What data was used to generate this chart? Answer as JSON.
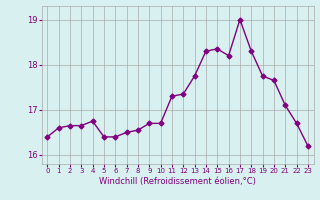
{
  "x": [
    0,
    1,
    2,
    3,
    4,
    5,
    6,
    7,
    8,
    9,
    10,
    11,
    12,
    13,
    14,
    15,
    16,
    17,
    18,
    19,
    20,
    21,
    22,
    23
  ],
  "y": [
    16.4,
    16.6,
    16.65,
    16.65,
    16.75,
    16.4,
    16.4,
    16.5,
    16.55,
    16.7,
    16.7,
    17.3,
    17.35,
    17.75,
    18.3,
    18.35,
    18.2,
    19.0,
    18.3,
    17.75,
    17.65,
    17.1,
    16.7,
    16.2
  ],
  "line_color": "#800080",
  "marker": "D",
  "marker_size": 2.5,
  "bg_color": "#d8f0f0",
  "grid_color": "#aaaaaa",
  "xlabel": "Windchill (Refroidissement éolien,°C)",
  "xlabel_color": "#800080",
  "tick_color": "#800080",
  "ylim": [
    15.8,
    19.3
  ],
  "yticks": [
    16,
    17,
    18,
    19
  ],
  "xticks": [
    0,
    1,
    2,
    3,
    4,
    5,
    6,
    7,
    8,
    9,
    10,
    11,
    12,
    13,
    14,
    15,
    16,
    17,
    18,
    19,
    20,
    21,
    22,
    23
  ],
  "linewidth": 1.0
}
